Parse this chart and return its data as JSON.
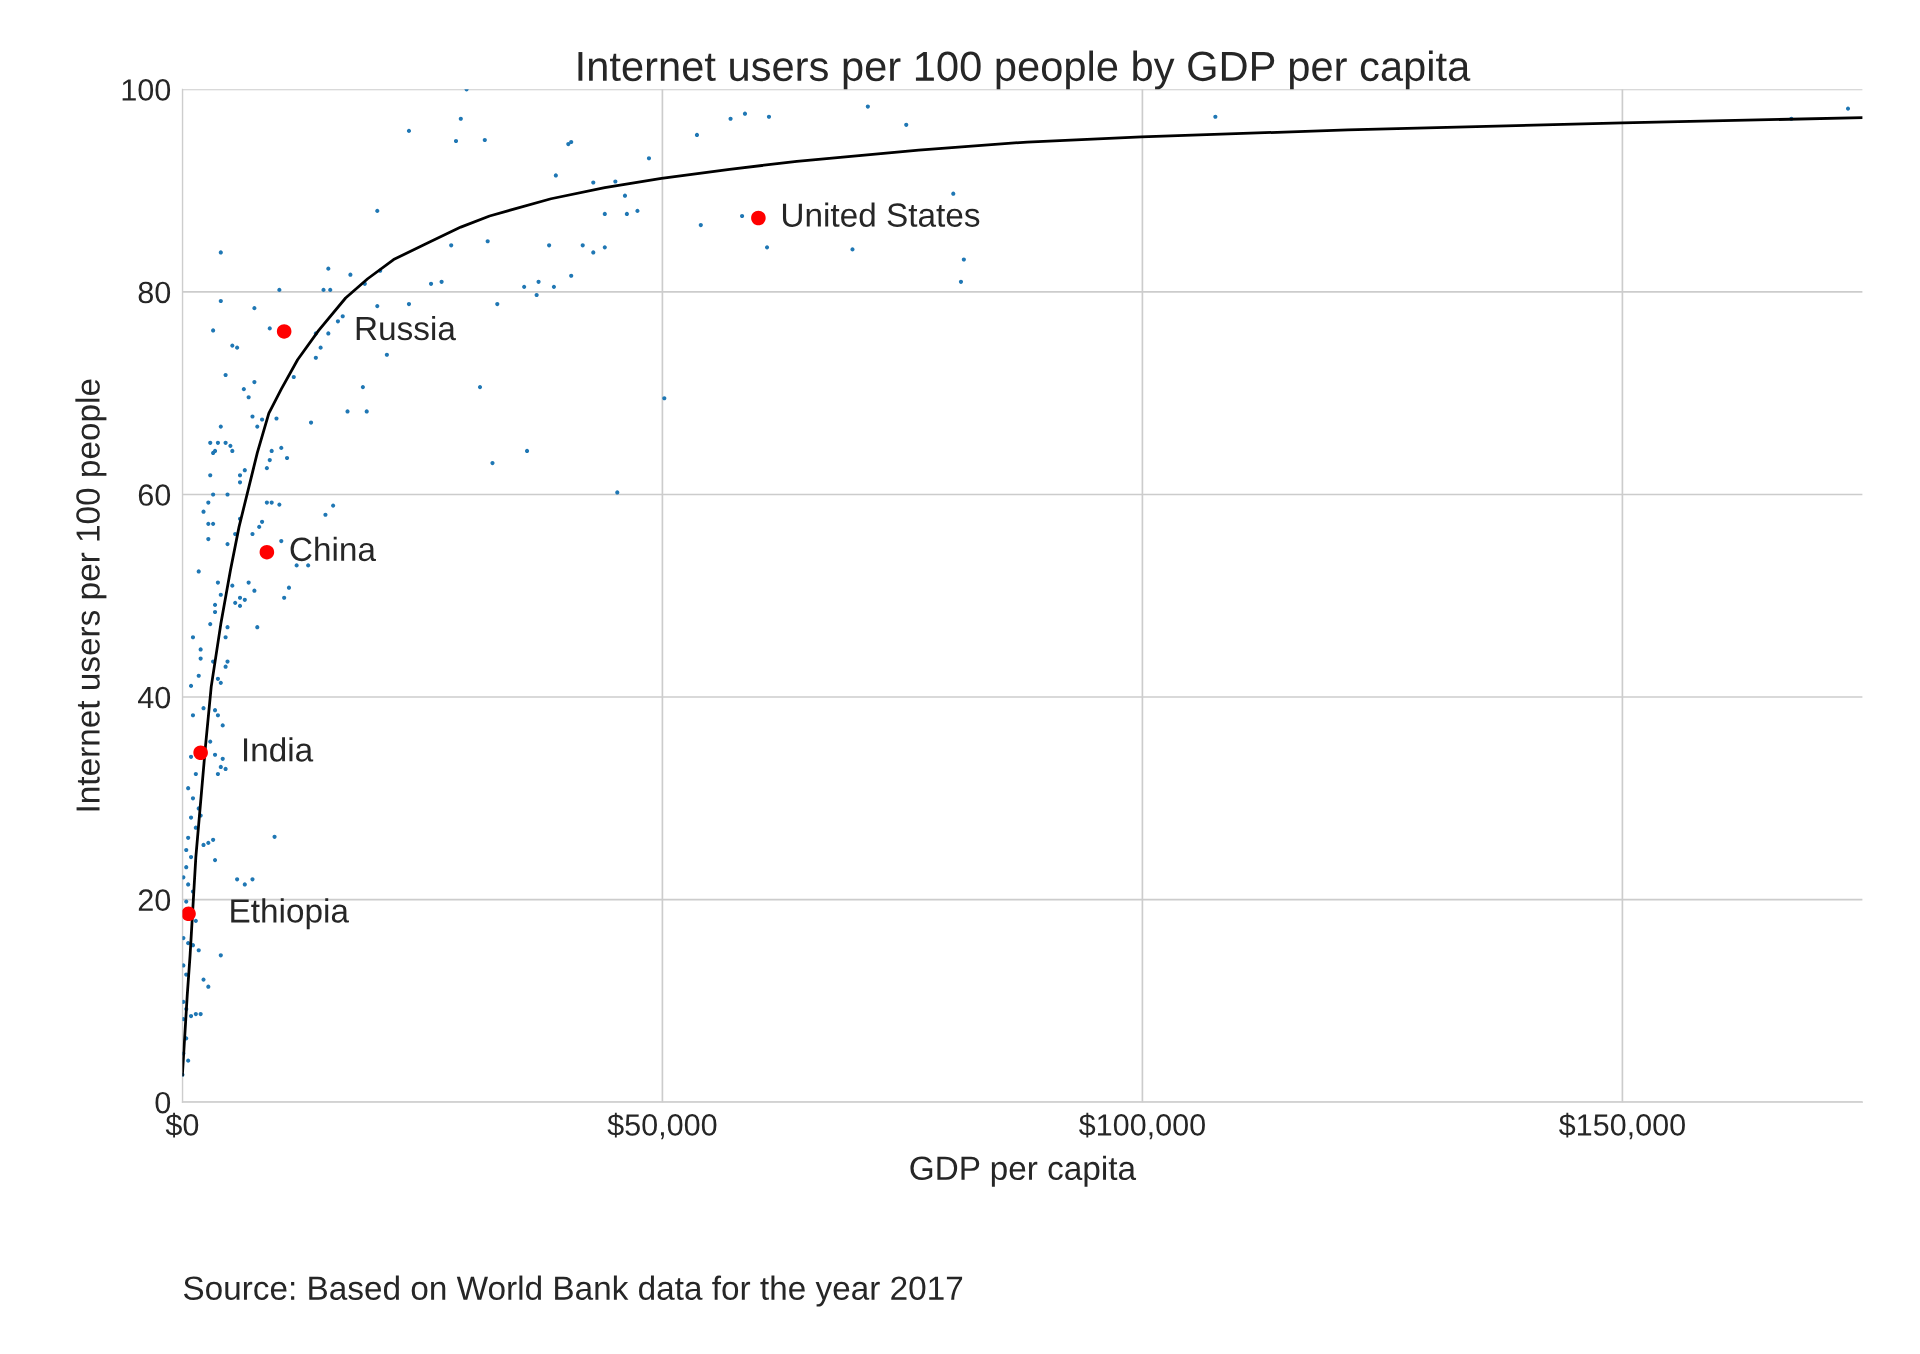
{
  "chart_data": {
    "type": "scatter",
    "title": "Internet users per 100 people by GDP per capita",
    "xlabel": "GDP per capita",
    "ylabel": "Internet users per 100 people",
    "xlim": [
      0,
      175000
    ],
    "ylim": [
      0,
      100
    ],
    "xticks": [
      {
        "value": 0,
        "label": "$0"
      },
      {
        "value": 50000,
        "label": "$50,000"
      },
      {
        "value": 100000,
        "label": "$100,000"
      },
      {
        "value": 150000,
        "label": "$150,000"
      }
    ],
    "yticks": [
      0,
      20,
      40,
      60,
      80,
      100
    ],
    "grid": true,
    "legend": false,
    "marker": "circle",
    "series": [
      {
        "color": "#1f77b4",
        "x": [
          29600,
          23600,
          29000,
          28500,
          31500,
          20300,
          40200,
          40500,
          38900,
          42800,
          45100,
          46100,
          48600,
          53600,
          57100,
          58600,
          61100,
          71400,
          75400,
          107600,
          167600,
          173500,
          44000,
          46300,
          47400,
          54000,
          58300,
          60900,
          69800,
          80300,
          81400,
          81100,
          31800,
          28000,
          38200,
          41700,
          42800,
          44000,
          25900,
          27000,
          35600,
          37100,
          38700,
          36900,
          40500,
          32800,
          23600,
          20600,
          17500,
          15200,
          14700,
          15400,
          19000,
          20300,
          16700,
          16200,
          15200,
          13900,
          14400,
          13900,
          21300,
          31000,
          50200,
          18800,
          17200,
          19200,
          13400,
          32300,
          35900,
          45300,
          15700,
          14900,
          10300,
          11900,
          13100,
          11100,
          10600,
          9600,
          5700,
          7300,
          6500,
          10100,
          4000,
          4000,
          3200,
          5200,
          5700,
          7500,
          9100,
          4500,
          6400,
          7500,
          6900,
          7300,
          7800,
          8300,
          11600,
          9800,
          10300,
          10900,
          2900,
          3700,
          4500,
          5000,
          3200,
          3400,
          4000,
          5200,
          6500,
          6000,
          2900,
          9100,
          8800,
          9300,
          2200,
          2700,
          4700,
          3200,
          6000,
          8800,
          9300,
          10100,
          2700,
          3200,
          6000,
          5500,
          8000,
          8300,
          7300,
          2700,
          4700,
          1700,
          3700,
          4000,
          3400,
          5200,
          6000,
          6500,
          6000,
          5500,
          6900,
          7500,
          7800,
          2900,
          3400,
          4700,
          4500,
          1100,
          1900,
          1900,
          1700,
          3200,
          4500,
          4700,
          900,
          3700,
          4000,
          1100,
          2200,
          3400,
          3700,
          4200,
          2900,
          3400,
          4000,
          3700,
          4200,
          4500,
          900,
          1400,
          600,
          1100,
          1700,
          900,
          1400,
          600,
          1900,
          2200,
          2700,
          3200,
          400,
          900,
          400,
          3400,
          100,
          600,
          1100,
          400,
          1400,
          1100,
          1700,
          100,
          600,
          4000,
          100,
          400,
          2200,
          2700,
          100,
          400,
          900,
          1400,
          1900,
          100,
          400,
          100,
          600,
          0
        ],
        "values": [
          100,
          95.9,
          97.1,
          94.9,
          95.0,
          88.0,
          94.6,
          94.8,
          91.5,
          90.8,
          90.9,
          89.5,
          93.2,
          95.5,
          97.1,
          97.6,
          97.3,
          98.3,
          96.5,
          97.3,
          97.1,
          98.1,
          87.7,
          87.7,
          88.0,
          86.6,
          87.5,
          84.4,
          84.2,
          89.7,
          83.2,
          81.0,
          85.0,
          84.6,
          84.6,
          84.6,
          83.9,
          84.4,
          80.8,
          81.0,
          80.5,
          81.0,
          80.5,
          79.7,
          81.6,
          78.8,
          78.8,
          82.1,
          81.7,
          82.3,
          80.2,
          80.2,
          80.8,
          78.6,
          77.6,
          77.1,
          75.9,
          75.9,
          74.5,
          73.5,
          73.8,
          70.6,
          69.5,
          70.6,
          68.2,
          68.2,
          67.1,
          63.1,
          64.3,
          60.2,
          58.9,
          58.0,
          55.4,
          53.0,
          53.0,
          50.8,
          49.8,
          26.2,
          22.0,
          22.0,
          21.5,
          80.2,
          83.9,
          79.1,
          76.2,
          74.7,
          74.5,
          78.4,
          76.4,
          71.8,
          70.4,
          71.1,
          69.6,
          67.7,
          66.7,
          67.4,
          71.6,
          67.5,
          64.6,
          63.6,
          65.1,
          65.1,
          65.1,
          64.8,
          64.1,
          64.3,
          66.7,
          64.3,
          62.4,
          61.9,
          61.9,
          63.4,
          62.6,
          64.3,
          58.3,
          59.2,
          60.0,
          60.0,
          61.2,
          59.2,
          59.2,
          59.0,
          57.1,
          57.1,
          57.6,
          56.1,
          56.8,
          57.3,
          56.1,
          55.6,
          55.1,
          52.4,
          51.3,
          50.1,
          49.1,
          51.0,
          49.8,
          49.6,
          49.0,
          49.3,
          51.3,
          50.5,
          46.9,
          47.2,
          48.4,
          46.9,
          45.9,
          45.9,
          44.7,
          43.8,
          42.1,
          43.5,
          43.0,
          43.5,
          41.1,
          41.8,
          41.4,
          38.2,
          38.9,
          38.7,
          38.2,
          37.2,
          35.6,
          34.3,
          33.1,
          32.4,
          33.9,
          32.9,
          34.1,
          32.4,
          31.0,
          30.0,
          29.0,
          28.1,
          27.1,
          26.1,
          28.3,
          25.4,
          25.6,
          25.9,
          24.9,
          24.2,
          23.2,
          23.9,
          22.2,
          21.5,
          20.8,
          19.8,
          17.9,
          15.5,
          15.0,
          16.2,
          15.7,
          14.5,
          13.5,
          12.6,
          12.1,
          11.4,
          9.9,
          9.2,
          8.5,
          8.7,
          8.7,
          8.2,
          6.3,
          4.8,
          4.1,
          2.7
        ]
      },
      {
        "color": "#ff0000",
        "x": [
          10600,
          8800,
          1900,
          640,
          60000
        ],
        "values": [
          76.1,
          54.3,
          34.5,
          18.6,
          87.3
        ]
      },
      {
        "type": "line",
        "color": "#000000",
        "marker": "none",
        "x": [
          0,
          500,
          800,
          1400,
          2400,
          3000,
          4000,
          5000,
          5900,
          7800,
          9000,
          10300,
          12000,
          14200,
          17000,
          19300,
          22000,
          25700,
          29000,
          32000,
          38400,
          44000,
          49900,
          57000,
          64000,
          76700,
          88000,
          99900,
          121400,
          150000,
          175000
        ],
        "values": [
          2.7,
          10.5,
          14.5,
          24.2,
          35.1,
          41.0,
          47.2,
          52.5,
          56.8,
          64.1,
          68.0,
          70.4,
          73.3,
          76.2,
          79.4,
          81.3,
          83.2,
          84.9,
          86.4,
          87.5,
          89.2,
          90.3,
          91.2,
          92.1,
          92.9,
          94.0,
          94.8,
          95.3,
          96.0,
          96.7,
          97.2
        ]
      }
    ],
    "annotations": [
      {
        "text": "Russia",
        "x": 10600,
        "y": 76.1
      },
      {
        "text": "China",
        "x": 8800,
        "y": 54.3
      },
      {
        "text": "India",
        "x": 1900,
        "y": 34.5
      },
      {
        "text": "Ethiopia",
        "x": 640,
        "y": 18.6
      },
      {
        "text": "United States",
        "x": 60000,
        "y": 87.3
      },
      "Source: Based on World Bank data for the year 2017"
    ]
  }
}
